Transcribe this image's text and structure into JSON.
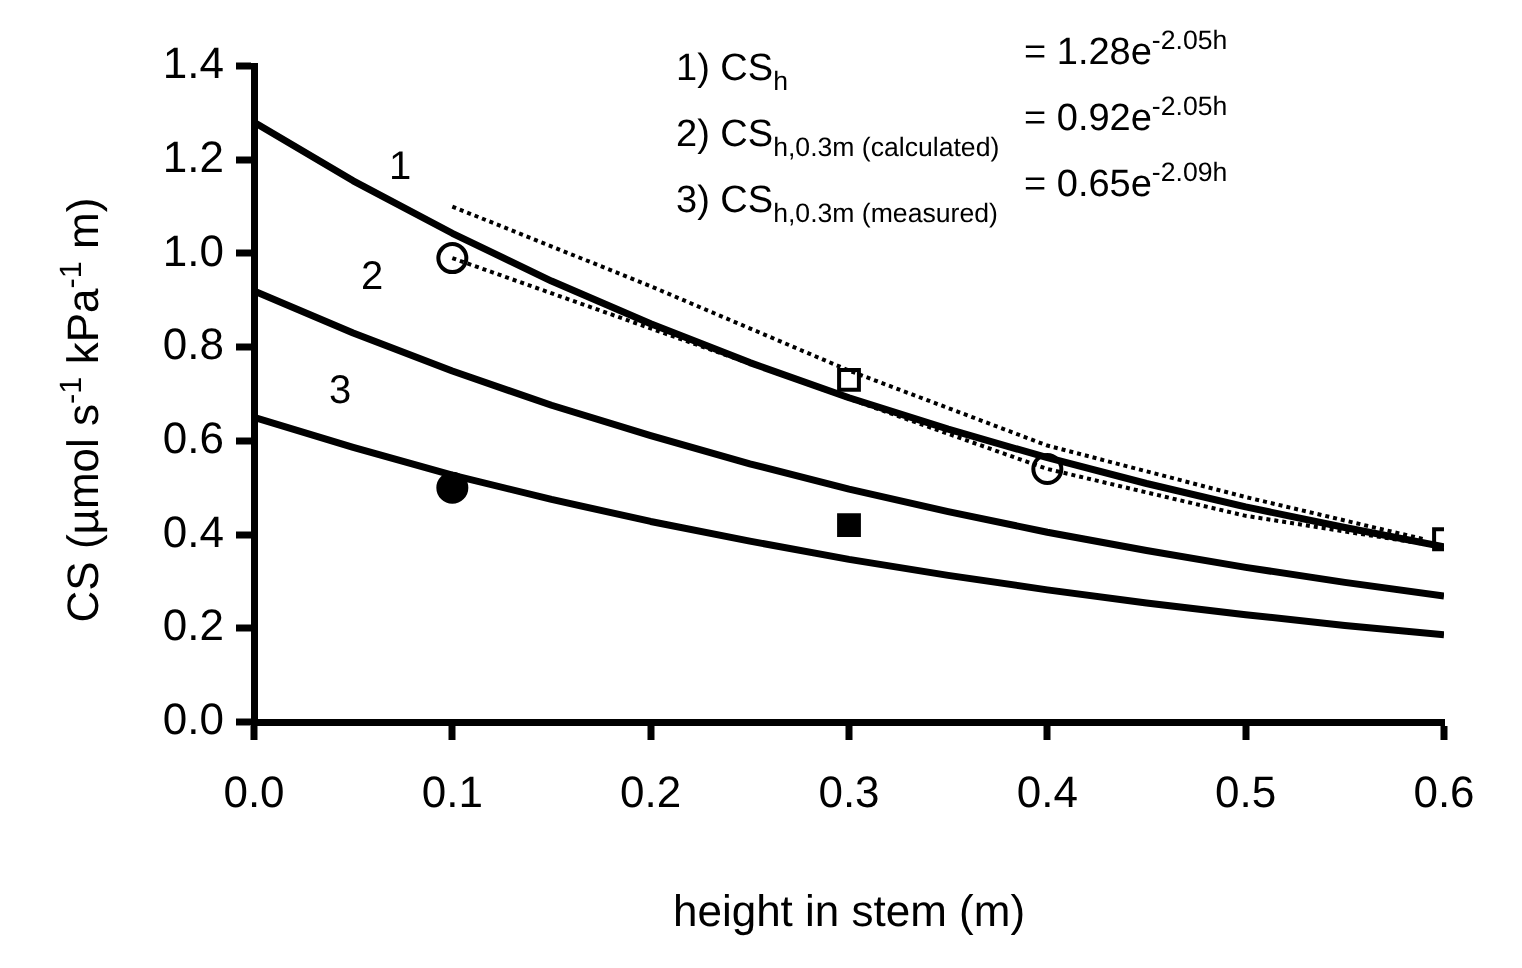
{
  "chart_data": {
    "type": "line",
    "xlabel": "height in stem (m)",
    "ylabel": "CS (µmol s$^{-1}$ kPa$^{-1}$ m)",
    "xlim": [
      0,
      0.6
    ],
    "ylim": [
      0,
      1.4
    ],
    "xticks": [
      {
        "value": 0,
        "label": "0.0"
      },
      {
        "value": 0.1,
        "label": "0.1"
      },
      {
        "value": 0.2,
        "label": "0.2"
      },
      {
        "value": 0.3,
        "label": "0.3"
      },
      {
        "value": 0.4,
        "label": "0.4"
      },
      {
        "value": 0.5,
        "label": "0.5"
      },
      {
        "value": 0.6,
        "label": "0.6"
      }
    ],
    "yticks": [
      {
        "value": 0,
        "label": "0.0"
      },
      {
        "value": 0.2,
        "label": "0.2"
      },
      {
        "value": 0.4,
        "label": "0.4"
      },
      {
        "value": 0.6,
        "label": "0.6"
      },
      {
        "value": 0.8,
        "label": "0.8"
      },
      {
        "value": 1,
        "label": "1.0"
      },
      {
        "value": 1.2,
        "label": "1.2"
      },
      {
        "value": 1.4,
        "label": "1.4"
      }
    ],
    "grid": false,
    "legend": false,
    "marker": "none",
    "series": [
      {
        "type": "line",
        "color": "#000000",
        "line_style": "solid",
        "x": [
          0,
          0.05,
          0.1,
          0.15,
          0.2,
          0.25,
          0.3,
          0.35,
          0.4,
          0.45,
          0.5,
          0.55,
          0.6
        ],
        "values": [
          1.28,
          1.155,
          1.043,
          0.941,
          0.85,
          0.767,
          0.692,
          0.625,
          0.564,
          0.509,
          0.459,
          0.415,
          0.374
        ]
      },
      {
        "type": "line",
        "color": "#000000",
        "line_style": "solid",
        "x": [
          0,
          0.05,
          0.1,
          0.15,
          0.2,
          0.25,
          0.3,
          0.35,
          0.4,
          0.45,
          0.5,
          0.55,
          0.6
        ],
        "values": [
          0.92,
          0.83,
          0.749,
          0.676,
          0.611,
          0.551,
          0.497,
          0.449,
          0.405,
          0.366,
          0.33,
          0.298,
          0.269
        ]
      },
      {
        "type": "line",
        "color": "#000000",
        "line_style": "solid",
        "x": [
          0,
          0.05,
          0.1,
          0.15,
          0.2,
          0.25,
          0.3,
          0.35,
          0.4,
          0.45,
          0.5,
          0.55,
          0.6
        ],
        "values": [
          0.65,
          0.586,
          0.527,
          0.475,
          0.428,
          0.386,
          0.347,
          0.313,
          0.282,
          0.254,
          0.229,
          0.206,
          0.186
        ]
      },
      {
        "type": "line",
        "color": "#000000",
        "line_style": "dotted",
        "x": [
          0.1,
          0.2,
          0.3,
          0.4,
          0.5,
          0.59
        ],
        "values": [
          1.1,
          0.93,
          0.75,
          0.59,
          0.48,
          0.39
        ]
      },
      {
        "type": "line",
        "color": "#000000",
        "line_style": "dotted",
        "x": [
          0.1,
          0.2,
          0.3,
          0.4,
          0.5,
          0.59
        ],
        "values": [
          0.99,
          0.84,
          0.69,
          0.54,
          0.44,
          0.38
        ]
      },
      {
        "type": "scatter",
        "color": "#ffffff",
        "marker": "circle",
        "x": [
          0.1,
          0.4
        ],
        "values": [
          0.99,
          0.54
        ]
      },
      {
        "type": "scatter",
        "color": "#ffffff",
        "marker": "square",
        "x": [
          0.3,
          0.6
        ],
        "values": [
          0.73,
          0.39
        ]
      },
      {
        "type": "scatter",
        "color": "#000000",
        "marker": "circle",
        "x": [
          0.1
        ],
        "values": [
          0.5
        ]
      },
      {
        "type": "scatter",
        "color": "#000000",
        "marker": "square",
        "x": [
          0.3
        ],
        "values": [
          0.42
        ]
      }
    ],
    "annotations": [
      "1",
      "2",
      "3",
      "1) CS$_{h}$",
      "= 1.28e$^{-2.05h}$",
      "2) CS$_{h,0.3m (calculated)}$",
      "= 0.92e$^{-2.05h}$",
      "3) CS$_{h,0.3m (measured)}$",
      "= 0.65e$^{-2.09h}$"
    ]
  }
}
